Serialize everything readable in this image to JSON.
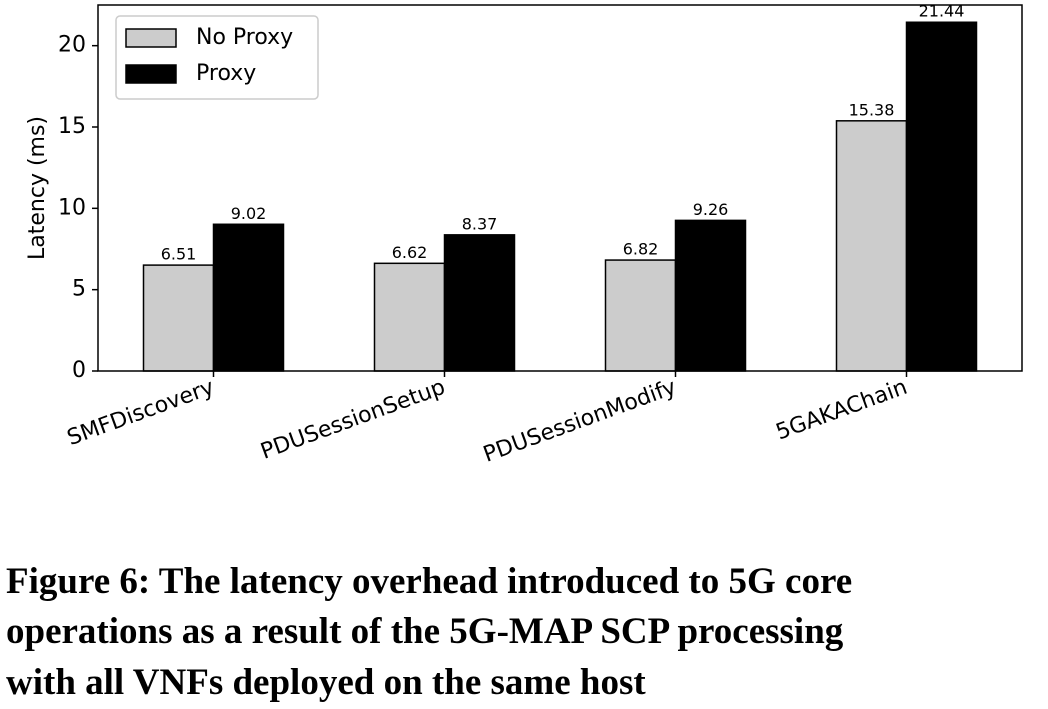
{
  "chart_data": {
    "type": "bar",
    "y_label": "Latency (ms)",
    "categories": [
      "SMFDiscovery",
      "PDUSessionSetup",
      "PDUSessionModify",
      "5GAKAChain"
    ],
    "series": [
      {
        "name": "No Proxy",
        "color": "#cccccc",
        "values": [
          6.51,
          6.62,
          6.82,
          15.38
        ]
      },
      {
        "name": "Proxy",
        "color": "#000000",
        "values": [
          9.02,
          8.37,
          9.26,
          21.44
        ]
      }
    ],
    "ylim": [
      0,
      22.5
    ],
    "yticks": [
      0,
      5,
      10,
      15,
      20
    ],
    "grid": false,
    "legend": "upper left",
    "caption": [
      "Figure 6: The latency overhead introduced to 5G core",
      "operations as a result of the 5G-MAP SCP processing",
      "with all VNFs deployed on the same host"
    ]
  }
}
